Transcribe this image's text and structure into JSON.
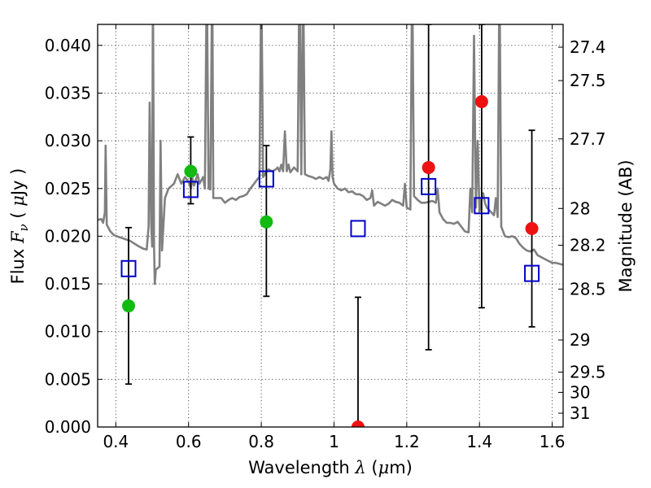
{
  "chart_data": {
    "type": "scatter",
    "xlabel": "Wavelength  λ (μm)",
    "ylabel": "Flux  F_ν  ( μJy )",
    "ylabel_parts": {
      "prefix": "Flux  ",
      "var": "F",
      "sub": "ν",
      "mid": "  ( ",
      "mu": "μ",
      "unit": "Jy )"
    },
    "xlabel_parts": {
      "prefix": "Wavelength  ",
      "var": "λ",
      "paren_open": " (",
      "mu": "μ",
      "unit": "m)"
    },
    "y2label": "Magnitude (AB)",
    "xlim": [
      0.35,
      1.63
    ],
    "ylim": [
      0.0,
      0.0422
    ],
    "x_ticks": [
      0.4,
      0.6,
      0.8,
      1.0,
      1.2,
      1.4,
      1.6
    ],
    "x_tick_labels": [
      "0.4",
      "0.6",
      "0.8",
      "1",
      "1.2",
      "1.4",
      "1.6"
    ],
    "y_ticks": [
      0.0,
      0.005,
      0.01,
      0.015,
      0.02,
      0.025,
      0.03,
      0.035,
      0.04
    ],
    "y_tick_labels": [
      "0.000",
      "0.005",
      "0.010",
      "0.015",
      "0.020",
      "0.025",
      "0.030",
      "0.035",
      "0.040"
    ],
    "mag_ticks": [
      {
        "mag": 27.4,
        "label": "27.4"
      },
      {
        "mag": 27.5,
        "label": "27.5"
      },
      {
        "mag": 27.7,
        "label": "27.7"
      },
      {
        "mag": 28.0,
        "label": "28"
      },
      {
        "mag": 28.2,
        "label": "28.2"
      },
      {
        "mag": 28.5,
        "label": "28.5"
      },
      {
        "mag": 29.0,
        "label": "29"
      },
      {
        "mag": 29.5,
        "label": "29.5"
      },
      {
        "mag": 30.0,
        "label": "30"
      },
      {
        "mag": 31.0,
        "label": "31"
      }
    ],
    "grid": true,
    "colors": {
      "spectrum": "#808080",
      "green_points": "#11bb11",
      "red_points": "#ee1111",
      "model_squares": "#0000cc",
      "errorbars": "#000000"
    },
    "errorbars": [
      {
        "x": 0.435,
        "low": 0.0045,
        "high": 0.0209
      },
      {
        "x": 0.606,
        "low": 0.0234,
        "high": 0.0304
      },
      {
        "x": 0.814,
        "low": 0.0137,
        "high": 0.0295
      },
      {
        "x": 1.066,
        "low": 0.0,
        "high": 0.0136
      },
      {
        "x": 1.26,
        "low": 0.0081,
        "high": 0.0422
      },
      {
        "x": 1.406,
        "low": 0.0125,
        "high": 0.0422
      },
      {
        "x": 1.544,
        "low": 0.0105,
        "high": 0.0311
      }
    ],
    "green_points": [
      {
        "x": 0.435,
        "y": 0.0127
      },
      {
        "x": 0.606,
        "y": 0.0268
      },
      {
        "x": 0.814,
        "y": 0.0215
      }
    ],
    "red_points": [
      {
        "x": 1.066,
        "y": 0.0
      },
      {
        "x": 1.26,
        "y": 0.0272
      },
      {
        "x": 1.406,
        "y": 0.0341
      },
      {
        "x": 1.544,
        "y": 0.0208
      }
    ],
    "model_squares": [
      {
        "x": 0.435,
        "y": 0.0166
      },
      {
        "x": 0.606,
        "y": 0.0249
      },
      {
        "x": 0.814,
        "y": 0.026
      },
      {
        "x": 1.066,
        "y": 0.0208
      },
      {
        "x": 1.26,
        "y": 0.0252
      },
      {
        "x": 1.406,
        "y": 0.0232
      },
      {
        "x": 1.544,
        "y": 0.0161
      }
    ],
    "spectrum": [
      [
        0.35,
        0.0217
      ],
      [
        0.36,
        0.0218
      ],
      [
        0.365,
        0.0214
      ],
      [
        0.37,
        0.0225
      ],
      [
        0.372,
        0.0295
      ],
      [
        0.375,
        0.0212
      ],
      [
        0.385,
        0.0205
      ],
      [
        0.395,
        0.0201
      ],
      [
        0.41,
        0.0199
      ],
      [
        0.425,
        0.0197
      ],
      [
        0.44,
        0.0195
      ],
      [
        0.46,
        0.019
      ],
      [
        0.475,
        0.0187
      ],
      [
        0.485,
        0.0186
      ],
      [
        0.49,
        0.021
      ],
      [
        0.493,
        0.034
      ],
      [
        0.497,
        0.0215
      ],
      [
        0.5,
        0.0189
      ],
      [
        0.502,
        0.048
      ],
      [
        0.505,
        0.019
      ],
      [
        0.507,
        0.015
      ],
      [
        0.51,
        0.0165
      ],
      [
        0.52,
        0.0168
      ],
      [
        0.523,
        0.03
      ],
      [
        0.527,
        0.0185
      ],
      [
        0.535,
        0.024
      ],
      [
        0.545,
        0.025
      ],
      [
        0.56,
        0.0255
      ],
      [
        0.57,
        0.0265
      ],
      [
        0.58,
        0.0255
      ],
      [
        0.59,
        0.0262
      ],
      [
        0.6,
        0.0257
      ],
      [
        0.607,
        0.025
      ],
      [
        0.61,
        0.0262
      ],
      [
        0.615,
        0.0253
      ],
      [
        0.625,
        0.0265
      ],
      [
        0.63,
        0.0255
      ],
      [
        0.64,
        0.0262
      ],
      [
        0.645,
        0.025
      ],
      [
        0.65,
        0.048
      ],
      [
        0.655,
        0.025
      ],
      [
        0.66,
        0.0249
      ],
      [
        0.665,
        0.048
      ],
      [
        0.668,
        0.024
      ],
      [
        0.675,
        0.024
      ],
      [
        0.69,
        0.024
      ],
      [
        0.7,
        0.0235
      ],
      [
        0.71,
        0.0238
      ],
      [
        0.72,
        0.024
      ],
      [
        0.73,
        0.0238
      ],
      [
        0.74,
        0.0241
      ],
      [
        0.75,
        0.0242
      ],
      [
        0.76,
        0.0244
      ],
      [
        0.77,
        0.025
      ],
      [
        0.78,
        0.0255
      ],
      [
        0.79,
        0.026
      ],
      [
        0.795,
        0.0262
      ],
      [
        0.8,
        0.048
      ],
      [
        0.805,
        0.0262
      ],
      [
        0.81,
        0.0265
      ],
      [
        0.815,
        0.0268
      ],
      [
        0.82,
        0.027
      ],
      [
        0.83,
        0.0268
      ],
      [
        0.84,
        0.027
      ],
      [
        0.845,
        0.0272
      ],
      [
        0.85,
        0.0268
      ],
      [
        0.855,
        0.0275
      ],
      [
        0.86,
        0.0268
      ],
      [
        0.865,
        0.031
      ],
      [
        0.87,
        0.0268
      ],
      [
        0.875,
        0.0275
      ],
      [
        0.88,
        0.0267
      ],
      [
        0.89,
        0.0272
      ],
      [
        0.9,
        0.0268
      ],
      [
        0.905,
        0.048
      ],
      [
        0.91,
        0.0265
      ],
      [
        0.915,
        0.048
      ],
      [
        0.92,
        0.0265
      ],
      [
        0.93,
        0.0263
      ],
      [
        0.94,
        0.0262
      ],
      [
        0.95,
        0.026
      ],
      [
        0.96,
        0.0262
      ],
      [
        0.97,
        0.026
      ],
      [
        0.98,
        0.0262
      ],
      [
        0.985,
        0.0258
      ],
      [
        0.99,
        0.027
      ],
      [
        0.993,
        0.031
      ],
      [
        0.996,
        0.0262
      ],
      [
        1.0,
        0.0255
      ],
      [
        1.01,
        0.025
      ],
      [
        1.02,
        0.0248
      ],
      [
        1.03,
        0.025
      ],
      [
        1.04,
        0.0246
      ],
      [
        1.05,
        0.0247
      ],
      [
        1.06,
        0.0244
      ],
      [
        1.07,
        0.0244
      ],
      [
        1.08,
        0.0242
      ],
      [
        1.09,
        0.0238
      ],
      [
        1.1,
        0.024
      ],
      [
        1.105,
        0.0248
      ],
      [
        1.11,
        0.0232
      ],
      [
        1.12,
        0.0236
      ],
      [
        1.13,
        0.0234
      ],
      [
        1.14,
        0.0232
      ],
      [
        1.15,
        0.0234
      ],
      [
        1.16,
        0.0238
      ],
      [
        1.17,
        0.0236
      ],
      [
        1.18,
        0.0235
      ],
      [
        1.19,
        0.0232
      ],
      [
        1.195,
        0.0255
      ],
      [
        1.2,
        0.023
      ],
      [
        1.21,
        0.0228
      ],
      [
        1.215,
        0.048
      ],
      [
        1.22,
        0.0242
      ],
      [
        1.23,
        0.0238
      ],
      [
        1.24,
        0.0235
      ],
      [
        1.25,
        0.0235
      ],
      [
        1.26,
        0.0236
      ],
      [
        1.27,
        0.0237
      ],
      [
        1.28,
        0.0235
      ],
      [
        1.285,
        0.025
      ],
      [
        1.29,
        0.0225
      ],
      [
        1.3,
        0.0218
      ],
      [
        1.31,
        0.0214
      ],
      [
        1.32,
        0.0214
      ],
      [
        1.33,
        0.0213
      ],
      [
        1.34,
        0.0215
      ],
      [
        1.35,
        0.021
      ],
      [
        1.36,
        0.0205
      ],
      [
        1.37,
        0.0204
      ],
      [
        1.375,
        0.025
      ],
      [
        1.38,
        0.0225
      ],
      [
        1.385,
        0.041
      ],
      [
        1.39,
        0.023
      ],
      [
        1.395,
        0.03
      ],
      [
        1.4,
        0.0225
      ],
      [
        1.405,
        0.0238
      ],
      [
        1.41,
        0.0245
      ],
      [
        1.415,
        0.0235
      ],
      [
        1.42,
        0.023
      ],
      [
        1.43,
        0.0226
      ],
      [
        1.44,
        0.0222
      ],
      [
        1.445,
        0.024
      ],
      [
        1.45,
        0.022
      ],
      [
        1.455,
        0.048
      ],
      [
        1.46,
        0.021
      ],
      [
        1.47,
        0.02
      ],
      [
        1.48,
        0.0199
      ],
      [
        1.49,
        0.02
      ],
      [
        1.5,
        0.0198
      ],
      [
        1.51,
        0.0192
      ],
      [
        1.52,
        0.0188
      ],
      [
        1.53,
        0.0185
      ],
      [
        1.54,
        0.0184
      ],
      [
        1.55,
        0.0186
      ],
      [
        1.56,
        0.018
      ],
      [
        1.57,
        0.0178
      ],
      [
        1.58,
        0.0176
      ],
      [
        1.59,
        0.0174
      ],
      [
        1.6,
        0.0172
      ],
      [
        1.61,
        0.0172
      ],
      [
        1.62,
        0.0171
      ],
      [
        1.63,
        0.017
      ]
    ]
  }
}
